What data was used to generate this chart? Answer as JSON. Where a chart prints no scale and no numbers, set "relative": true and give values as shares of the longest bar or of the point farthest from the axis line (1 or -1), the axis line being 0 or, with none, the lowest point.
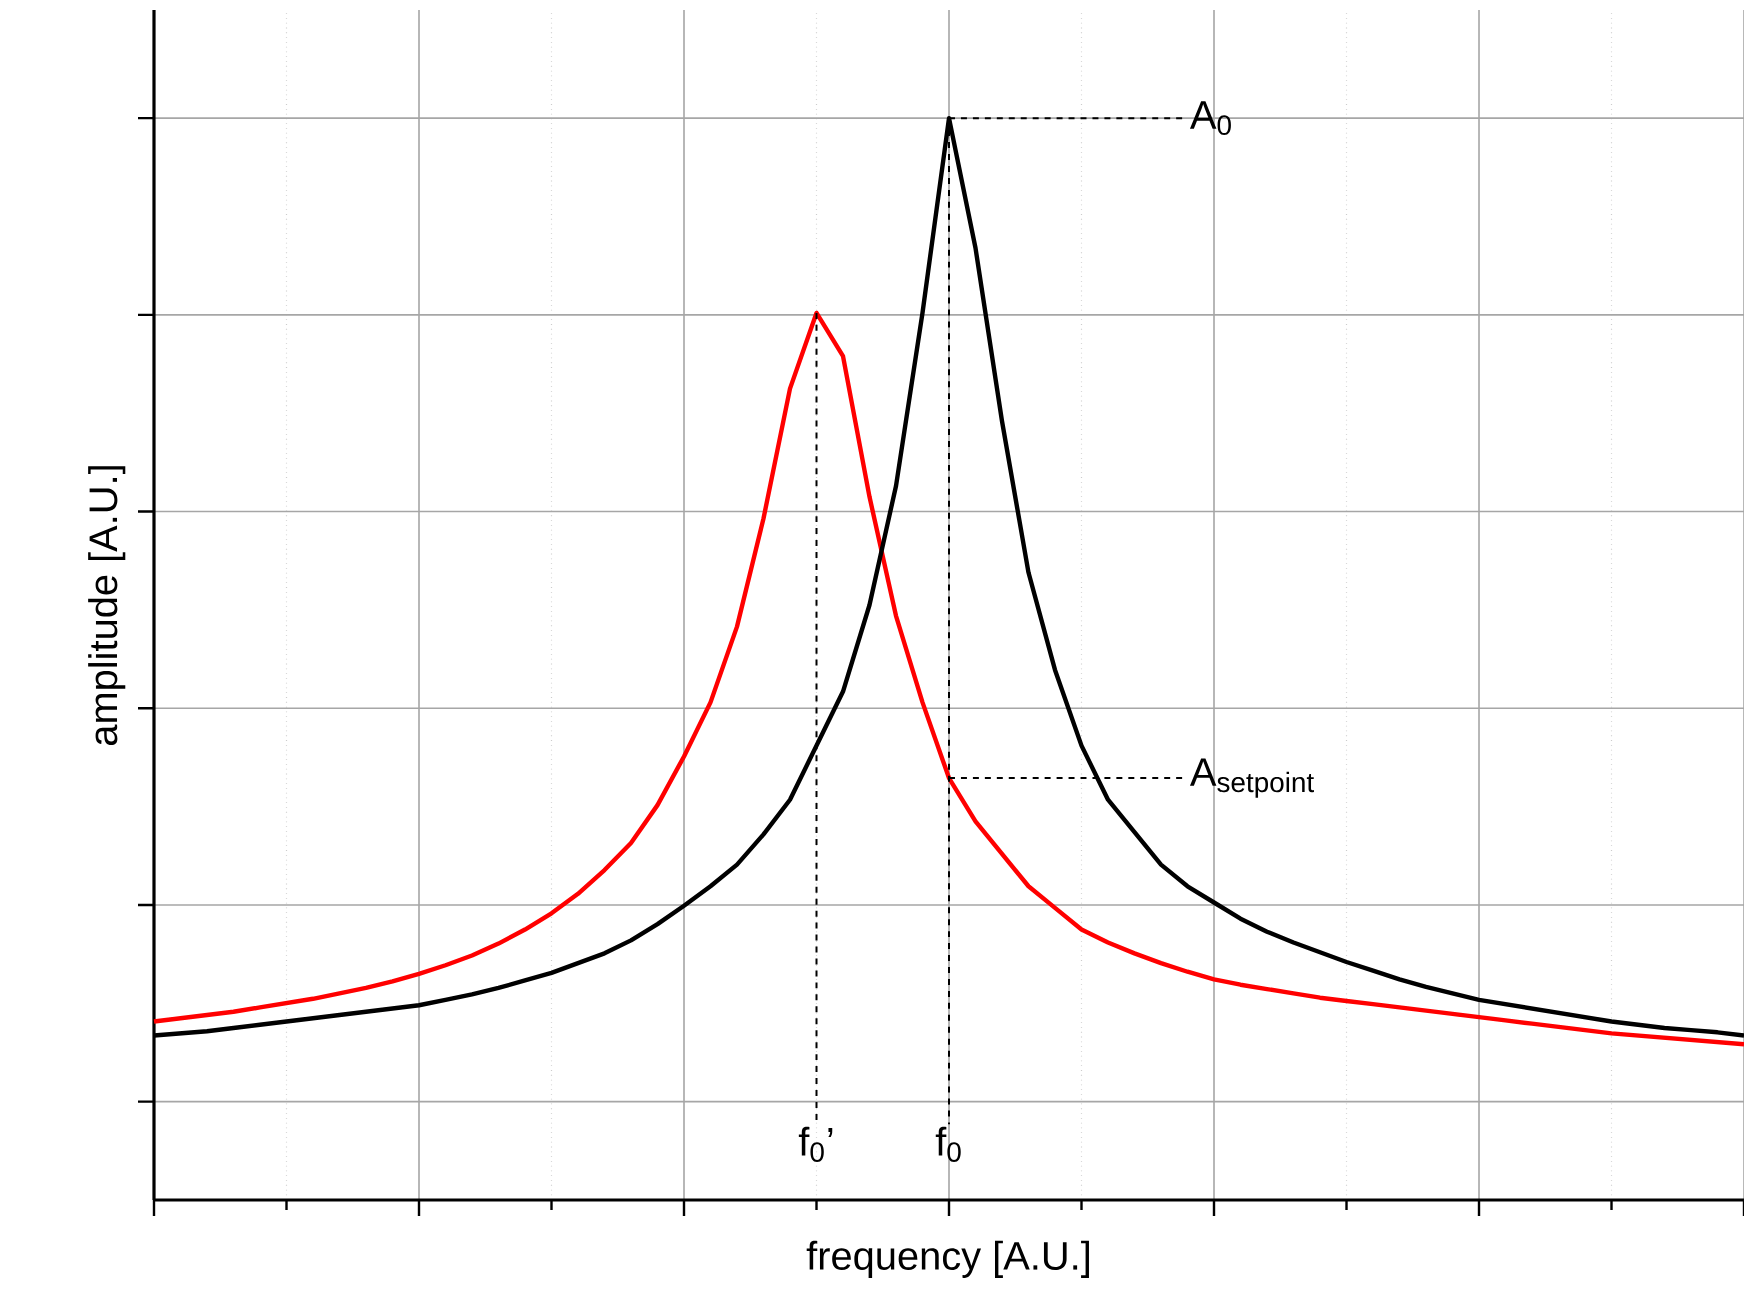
{
  "chart_data": {
    "type": "line",
    "relative": true,
    "xlabel": "frequency [A.U.]",
    "ylabel": "amplitude [A.U.]",
    "grid": true,
    "tick_labels": false,
    "marker": "none",
    "line_style": "solid",
    "categories": [
      null,
      null,
      null,
      null,
      null,
      null,
      null,
      null,
      null,
      null,
      null,
      null,
      null,
      null,
      null,
      null,
      null,
      null,
      null,
      null,
      null,
      null,
      null,
      null,
      null,
      null,
      null,
      null,
      null,
      null,
      null,
      null,
      null,
      null,
      null,
      null,
      null,
      null,
      null,
      null,
      null,
      null,
      null,
      null,
      null,
      null,
      null,
      null,
      null,
      null,
      null,
      null,
      null,
      null,
      null,
      null,
      null,
      null,
      null,
      null,
      null
    ],
    "series": [
      {
        "color": "#ff0000",
        "values": [
          0.165,
          0.168,
          0.171,
          0.174,
          0.178,
          0.182,
          0.186,
          0.191,
          0.196,
          0.202,
          0.209,
          0.217,
          0.226,
          0.237,
          0.25,
          0.265,
          0.283,
          0.305,
          0.33,
          0.365,
          0.41,
          0.46,
          0.53,
          0.63,
          0.75,
          0.82,
          0.78,
          0.65,
          0.54,
          0.46,
          0.39,
          0.35,
          0.32,
          0.29,
          0.27,
          0.25,
          0.238,
          0.228,
          0.219,
          0.211,
          0.204,
          0.199,
          0.195,
          0.191,
          0.187,
          0.184,
          0.181,
          0.178,
          0.175,
          0.172,
          0.169,
          0.166,
          0.163,
          0.16,
          0.157,
          0.154,
          0.152,
          0.15,
          0.148,
          0.146,
          0.144
        ]
      },
      {
        "color": "#000000",
        "values": [
          0.152,
          0.154,
          0.156,
          0.159,
          0.162,
          0.165,
          0.168,
          0.171,
          0.174,
          0.177,
          0.18,
          0.185,
          0.19,
          0.196,
          0.203,
          0.21,
          0.219,
          0.228,
          0.24,
          0.255,
          0.272,
          0.29,
          0.31,
          0.338,
          0.37,
          0.42,
          0.47,
          0.55,
          0.66,
          0.82,
          1,
          0.88,
          0.72,
          0.58,
          0.49,
          0.42,
          0.37,
          0.34,
          0.31,
          0.29,
          0.275,
          0.26,
          0.248,
          0.238,
          0.229,
          0.22,
          0.212,
          0.204,
          0.197,
          0.191,
          0.185,
          0.181,
          0.177,
          0.173,
          0.169,
          0.165,
          0.162,
          0.159,
          0.157,
          0.155,
          0.152
        ]
      }
    ],
    "annotations": [
      "A$_{0}$",
      "A$_{setpoint}$",
      "f$_{0}$’",
      "f$_{0}$"
    ]
  }
}
